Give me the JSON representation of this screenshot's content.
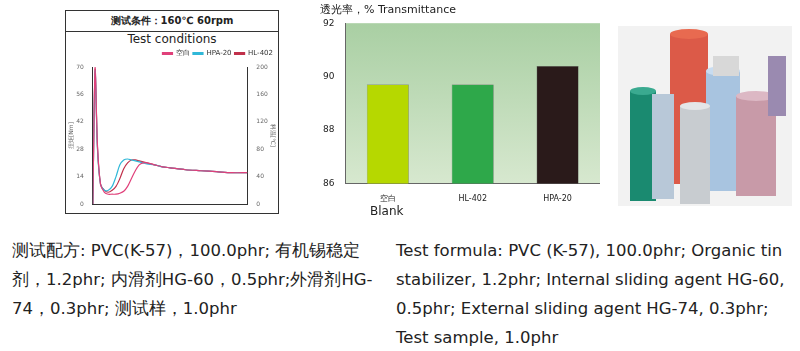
{
  "chart_data": [
    {
      "type": "line",
      "title": "测试条件：160℃ 60rpm",
      "subtitle": "Test conditions",
      "y_label": "扭矩[Nm]",
      "y2_label": "料温[℃]",
      "x": [
        0,
        0.3,
        0.6,
        1,
        1.5,
        2,
        2.5,
        3,
        3.5,
        4,
        4.5,
        5,
        5.5,
        6,
        6.5,
        7,
        8,
        9,
        10,
        12,
        14,
        16,
        18,
        20
      ],
      "series": [
        {
          "name": "空白",
          "color": "#e0407a",
          "values": [
            0,
            70,
            30,
            10,
            6,
            5,
            5,
            5,
            5.5,
            6.5,
            9,
            13,
            17,
            20,
            21,
            21,
            20,
            19,
            18.5,
            17.5,
            17,
            16.5,
            16,
            16
          ]
        },
        {
          "name": "HPA-20",
          "color": "#30b8d8",
          "values": [
            0,
            68,
            28,
            10,
            7,
            7,
            9,
            14,
            20,
            22.5,
            23,
            22.5,
            22,
            21.5,
            21,
            20.5,
            20,
            19,
            18.5,
            17.5,
            17,
            16.5,
            16,
            16
          ]
        },
        {
          "name": "HL-402",
          "color": "#c0304a",
          "values": [
            0,
            69,
            29,
            10,
            7,
            6,
            7,
            9,
            13,
            18,
            21,
            22.5,
            22.5,
            22,
            21.5,
            21,
            20,
            19,
            18.5,
            17.5,
            17,
            16.5,
            16,
            16
          ]
        }
      ],
      "xlim": [
        0,
        20
      ],
      "xticks": [
        0,
        5,
        10,
        15,
        20
      ],
      "ylim": [
        0,
        70
      ],
      "yticks": [
        0,
        14,
        28,
        42,
        56,
        70
      ],
      "y2lim": [
        0,
        200
      ],
      "y2ticks": [
        0,
        40,
        80,
        120,
        160,
        200
      ],
      "grid": false,
      "legend": "upper right",
      "tick_labels": "y"
    },
    {
      "type": "bar",
      "title": "透光率，% Transmittance",
      "categories": [
        "空白",
        "HL-402",
        "HPA-20"
      ],
      "values": [
        89.7,
        89.7,
        90.4
      ],
      "colors": [
        "#b6d800",
        "#2ea84a",
        "#2a1a1a"
      ],
      "ylim": [
        86,
        92
      ],
      "yticks": [
        86,
        88,
        90,
        92
      ],
      "grid": false,
      "annotation": "Blank"
    }
  ],
  "texts": {
    "formula_zh": "测试配方: PVC(K-57)，100.0phr; 有机锡稳定剂，1.2phr; 内滑剂HG-60，0.5phr;外滑剂HG-74，0.3phr; 测试样，1.0phr",
    "formula_en": "Test formula: PVC (K-57), 100.0phr; Organic tin stabilizer, 1.2phr; Internal sliding agent HG-60, 0.5phr; External sliding agent HG-74, 0.3phr; Test sample, 1.0phr"
  }
}
